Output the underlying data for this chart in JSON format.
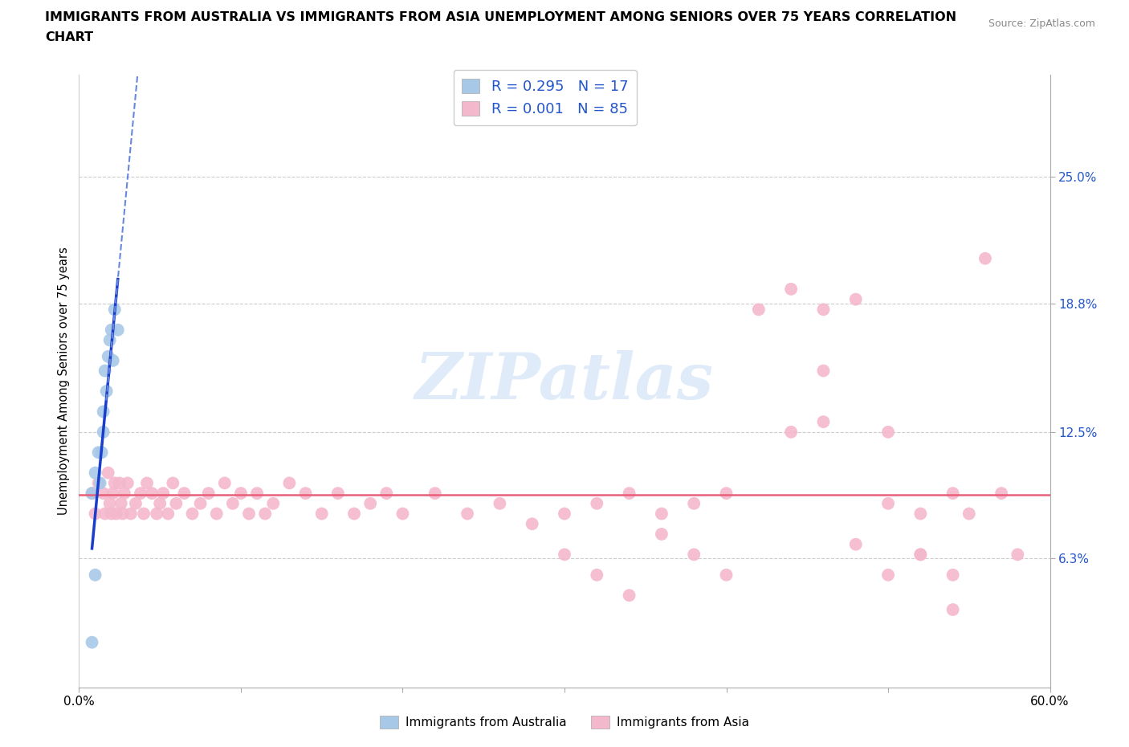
{
  "title_line1": "IMMIGRANTS FROM AUSTRALIA VS IMMIGRANTS FROM ASIA UNEMPLOYMENT AMONG SENIORS OVER 75 YEARS CORRELATION",
  "title_line2": "CHART",
  "source": "Source: ZipAtlas.com",
  "ylabel": "Unemployment Among Seniors over 75 years",
  "xlim": [
    0.0,
    0.6
  ],
  "ylim": [
    0.0,
    0.3
  ],
  "xtick_positions": [
    0.0,
    0.1,
    0.2,
    0.3,
    0.4,
    0.5,
    0.6
  ],
  "xticklabels": [
    "0.0%",
    "",
    "",
    "",
    "",
    "",
    "60.0%"
  ],
  "yticks_right": [
    0.063,
    0.125,
    0.188,
    0.25
  ],
  "ytick_right_labels": [
    "6.3%",
    "12.5%",
    "18.8%",
    "25.0%"
  ],
  "australia_R": "0.295",
  "australia_N": "17",
  "asia_R": "0.001",
  "asia_N": "85",
  "australia_color": "#a8c8e8",
  "asia_color": "#f4b8cc",
  "australia_line_solid_color": "#1a3ecc",
  "australia_line_dash_color": "#6688dd",
  "asia_line_color": "#e8607a",
  "legend_color": "#2255cc",
  "watermark": "ZIPatlas",
  "australia_points_x": [
    0.008,
    0.008,
    0.01,
    0.012,
    0.013,
    0.014,
    0.015,
    0.015,
    0.016,
    0.017,
    0.018,
    0.019,
    0.02,
    0.021,
    0.022,
    0.024,
    0.01
  ],
  "australia_points_y": [
    0.022,
    0.095,
    0.105,
    0.115,
    0.1,
    0.115,
    0.125,
    0.135,
    0.155,
    0.145,
    0.162,
    0.17,
    0.175,
    0.16,
    0.185,
    0.175,
    0.055
  ],
  "asia_points_x": [
    0.008,
    0.01,
    0.012,
    0.015,
    0.016,
    0.018,
    0.019,
    0.02,
    0.021,
    0.022,
    0.023,
    0.025,
    0.026,
    0.027,
    0.028,
    0.03,
    0.032,
    0.035,
    0.038,
    0.04,
    0.042,
    0.045,
    0.048,
    0.05,
    0.052,
    0.055,
    0.058,
    0.06,
    0.065,
    0.07,
    0.075,
    0.08,
    0.085,
    0.09,
    0.095,
    0.1,
    0.105,
    0.11,
    0.115,
    0.12,
    0.13,
    0.14,
    0.15,
    0.16,
    0.17,
    0.18,
    0.19,
    0.2,
    0.22,
    0.24,
    0.26,
    0.28,
    0.3,
    0.32,
    0.34,
    0.36,
    0.38,
    0.4,
    0.42,
    0.44,
    0.46,
    0.48,
    0.5,
    0.52,
    0.54,
    0.55,
    0.56,
    0.57,
    0.58,
    0.44,
    0.46,
    0.5,
    0.52,
    0.54,
    0.36,
    0.38,
    0.4,
    0.3,
    0.32,
    0.34,
    0.46,
    0.48,
    0.5,
    0.52,
    0.54
  ],
  "asia_points_y": [
    0.095,
    0.085,
    0.1,
    0.095,
    0.085,
    0.105,
    0.09,
    0.085,
    0.095,
    0.1,
    0.085,
    0.1,
    0.09,
    0.085,
    0.095,
    0.1,
    0.085,
    0.09,
    0.095,
    0.085,
    0.1,
    0.095,
    0.085,
    0.09,
    0.095,
    0.085,
    0.1,
    0.09,
    0.095,
    0.085,
    0.09,
    0.095,
    0.085,
    0.1,
    0.09,
    0.095,
    0.085,
    0.095,
    0.085,
    0.09,
    0.1,
    0.095,
    0.085,
    0.095,
    0.085,
    0.09,
    0.095,
    0.085,
    0.095,
    0.085,
    0.09,
    0.08,
    0.085,
    0.09,
    0.095,
    0.085,
    0.09,
    0.095,
    0.185,
    0.195,
    0.185,
    0.19,
    0.09,
    0.085,
    0.095,
    0.085,
    0.21,
    0.095,
    0.065,
    0.125,
    0.13,
    0.125,
    0.065,
    0.055,
    0.075,
    0.065,
    0.055,
    0.065,
    0.055,
    0.045,
    0.155,
    0.07,
    0.055,
    0.065,
    0.038
  ]
}
